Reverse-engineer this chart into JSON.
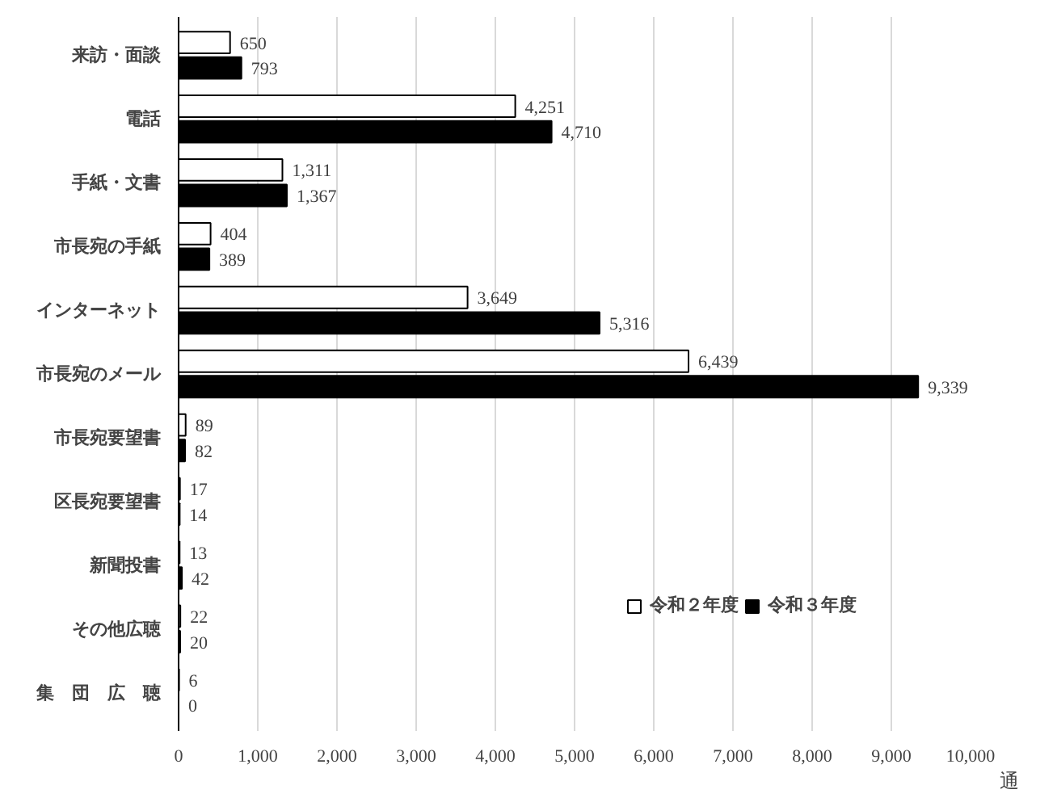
{
  "chart_data": {
    "type": "bar",
    "orientation": "horizontal",
    "xlabel": "通",
    "categories": [
      "来訪・面談",
      "電話",
      "手紙・文書",
      "市長宛の手紙",
      "インターネット",
      "市長宛のメール",
      "市長宛要望書",
      "区長宛要望書",
      "新聞投書",
      "その他広聴",
      "集　団　広　聴"
    ],
    "series": [
      {
        "name": "令和２年度",
        "color": "#ffffff",
        "values": [
          650,
          4251,
          1311,
          404,
          3649,
          6439,
          89,
          17,
          13,
          22,
          6
        ],
        "value_labels": [
          "650",
          "4,251",
          "1,311",
          "404",
          "3,649",
          "6,439",
          "89",
          "17",
          "13",
          "22",
          "6"
        ]
      },
      {
        "name": "令和３年度",
        "color": "#000000",
        "values": [
          793,
          4710,
          1367,
          389,
          5316,
          9339,
          82,
          14,
          42,
          20,
          0
        ],
        "value_labels": [
          "793",
          "4,710",
          "1,367",
          "389",
          "5,316",
          "9,339",
          "82",
          "14",
          "42",
          "20",
          "0"
        ]
      }
    ],
    "xlim": [
      0,
      10000
    ],
    "xticks": [
      0,
      {
        "value": 1000,
        "label": "1,000"
      },
      {
        "value": 2000,
        "label": "2,000"
      },
      {
        "value": 3000,
        "label": "3,000"
      },
      {
        "value": 4000,
        "label": "4,000"
      },
      {
        "value": 5000,
        "label": "5,000"
      },
      {
        "value": 6000,
        "label": "6,000"
      },
      {
        "value": 7000,
        "label": "7,000"
      },
      {
        "value": 8000,
        "label": "8,000"
      },
      {
        "value": 9000,
        "label": "9,000"
      },
      {
        "value": 10000,
        "label": "10,000"
      }
    ],
    "grid": "x",
    "legend": "bottom right"
  }
}
